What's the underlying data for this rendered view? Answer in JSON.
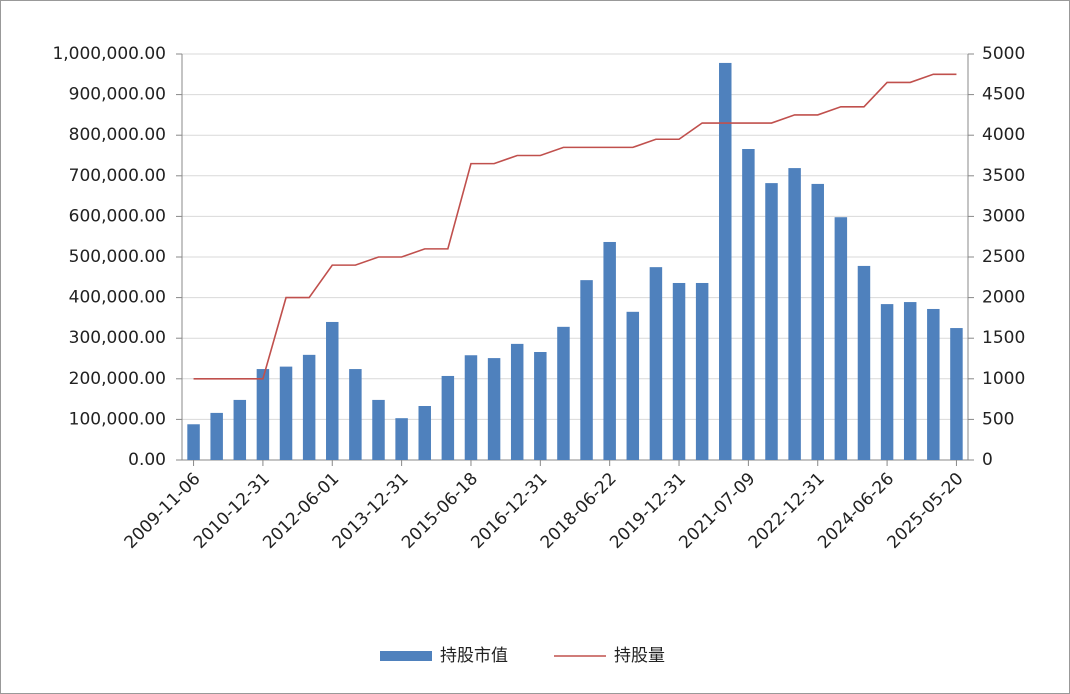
{
  "chart_data": {
    "type": "bar",
    "categories": [
      "2009-11-06",
      null,
      null,
      "2010-12-31",
      null,
      null,
      "2012-06-01",
      null,
      null,
      "2013-12-31",
      null,
      null,
      "2015-06-18",
      null,
      null,
      "2016-12-31",
      null,
      null,
      "2018-06-22",
      null,
      null,
      "2019-12-31",
      null,
      null,
      "2021-07-09",
      null,
      null,
      "2022-12-31",
      null,
      null,
      "2024-06-26",
      null,
      null,
      "2025-05-20"
    ],
    "series": [
      {
        "name": "持股市值",
        "type": "bar",
        "color": "#4f81bd",
        "values": [
          88000,
          116000,
          148000,
          224000,
          230000,
          259000,
          340000,
          224000,
          148000,
          103000,
          133000,
          207000,
          258000,
          251000,
          286000,
          266000,
          328000,
          443000,
          537000,
          365000,
          475000,
          436000,
          436000,
          978000,
          766000,
          682000,
          719000,
          680000,
          598000,
          478000,
          384000,
          389000,
          372000,
          325000
        ]
      },
      {
        "name": "持股量",
        "type": "line",
        "axis": "y2",
        "color": "#c0504d",
        "values": [
          1000,
          1000,
          1000,
          1000,
          2000,
          2000,
          2400,
          2400,
          2500,
          2500,
          2600,
          2600,
          3650,
          3650,
          3750,
          3750,
          3850,
          3850,
          3850,
          3850,
          3950,
          3950,
          4150,
          4150,
          4150,
          4150,
          4250,
          4250,
          4350,
          4350,
          4650,
          4650,
          4750,
          4750
        ]
      }
    ],
    "ylim": [
      0,
      1000000
    ],
    "yticks": [
      {
        "value": 0,
        "label": "0.00"
      },
      {
        "value": 100000,
        "label": "100,000.00"
      },
      {
        "value": 200000,
        "label": "200,000.00"
      },
      {
        "value": 300000,
        "label": "300,000.00"
      },
      {
        "value": 400000,
        "label": "400,000.00"
      },
      {
        "value": 500000,
        "label": "500,000.00"
      },
      {
        "value": 600000,
        "label": "600,000.00"
      },
      {
        "value": 700000,
        "label": "700,000.00"
      },
      {
        "value": 800000,
        "label": "800,000.00"
      },
      {
        "value": 900000,
        "label": "900,000.00"
      },
      {
        "value": 1000000,
        "label": "1,000,000.00"
      }
    ],
    "y2lim": [
      0,
      5000
    ],
    "y2ticks": [
      0,
      500,
      1000,
      1500,
      2000,
      2500,
      3000,
      3500,
      4000,
      4500,
      5000
    ],
    "grid": true,
    "legend": "bottom"
  }
}
